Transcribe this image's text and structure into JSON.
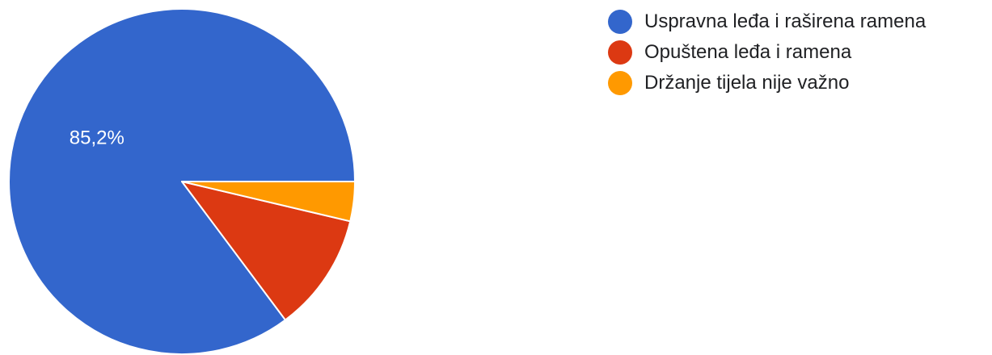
{
  "chart_data": {
    "type": "pie",
    "categories": [
      "Uspravna leđa i raširena ramena",
      "Opuštena leđa i ramena",
      "Držanje tijela nije važno"
    ],
    "values": [
      85.2,
      11.1,
      3.7
    ],
    "data_labels": [
      "85,2%",
      "",
      ""
    ],
    "colors": [
      "#3366cc",
      "#dc3912",
      "#ff9900"
    ],
    "start": "3 o'clock",
    "direction": "counterclockwise",
    "legend_position": "top-right"
  }
}
